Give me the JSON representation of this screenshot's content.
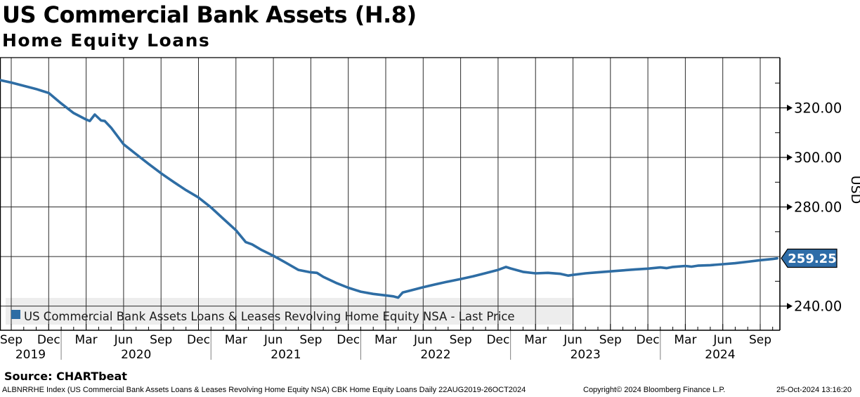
{
  "header": {
    "title": "US Commercial Bank Assets (H.8)",
    "subtitle": "Home Equity Loans"
  },
  "source_line": "Source: CHARTbeat",
  "footer": {
    "left": "ALBNRRHE Index (US Commercial Bank Assets Loans & Leases Revolving Home Equity NSA) CBK Home Equity Loans  Daily 22AUG2019-26OCT2024",
    "center": "Copyright© 2024 Bloomberg Finance L.P.",
    "right": "25-Oct-2024 13:16:20"
  },
  "legend": {
    "label": "US Commercial Bank Assets Loans & Leases Revolving Home Equity NSA - Last Price"
  },
  "last_price": {
    "value": "259.25"
  },
  "colors": {
    "line": "#2e6da4",
    "badge": "#2e6da8",
    "badge_text": "#ffffff",
    "grid": "#2b2b2b",
    "frame": "#000000",
    "legend_band": "#ededed",
    "legend_text": "#1c1c1c",
    "year_separator": "#808080"
  },
  "axes": {
    "y": {
      "title": "USD",
      "major_values": [
        320,
        300,
        280,
        240
      ],
      "major_labels": [
        "320.00",
        "300.00",
        "280.00",
        "240.00"
      ],
      "minor_values": [
        330,
        310,
        290,
        270,
        250
      ],
      "grid_values": [
        240,
        260,
        280,
        300,
        320
      ],
      "range_top": 340.2,
      "range_bottom": 230.2
    },
    "x": {
      "quarter_labels": [
        "Sep",
        "Dec",
        "Mar",
        "Jun",
        "Sep",
        "Dec",
        "Mar",
        "Jun",
        "Sep",
        "Dec",
        "Mar",
        "Jun",
        "Sep",
        "Dec",
        "Mar",
        "Jun",
        "Sep",
        "Dec",
        "Mar",
        "Jun",
        "Sep"
      ],
      "year_labels": [
        "2019",
        "2020",
        "2021",
        "2022",
        "2023",
        "2024"
      ],
      "range": "22AUG2019 - 26OCT2024"
    }
  },
  "chart_data": {
    "type": "line",
    "title": "US Commercial Bank Assets (H.8) - Home Equity Loans",
    "ylabel": "USD",
    "ylim": [
      230.2,
      340.2
    ],
    "grid": true,
    "legend_position": "bottom-left inside plot",
    "last_price": 259.25,
    "series": [
      {
        "name": "US Commercial Bank Assets Loans & Leases Revolving Home Equity NSA - Last Price",
        "color": "#2e6da4",
        "points": [
          [
            "2019-08-22",
            331.2
          ],
          [
            "2019-09-01",
            330.2
          ],
          [
            "2019-10-01",
            328.9
          ],
          [
            "2019-11-01",
            327.6
          ],
          [
            "2019-11-16",
            326.8
          ],
          [
            "2019-12-01",
            326.0
          ],
          [
            "2020-01-01",
            321.8
          ],
          [
            "2020-02-01",
            317.9
          ],
          [
            "2020-03-01",
            315.3
          ],
          [
            "2020-03-10",
            314.7
          ],
          [
            "2020-03-22",
            317.3
          ],
          [
            "2020-04-07",
            314.9
          ],
          [
            "2020-04-16",
            314.7
          ],
          [
            "2020-05-01",
            312.0
          ],
          [
            "2020-06-01",
            305.3
          ],
          [
            "2020-07-01",
            301.3
          ],
          [
            "2020-08-01",
            297.4
          ],
          [
            "2020-09-01",
            293.6
          ],
          [
            "2020-10-01",
            290.1
          ],
          [
            "2020-11-01",
            286.8
          ],
          [
            "2020-12-01",
            283.8
          ],
          [
            "2021-01-01",
            279.8
          ],
          [
            "2021-02-01",
            275.2
          ],
          [
            "2021-03-01",
            270.6
          ],
          [
            "2021-03-25",
            265.8
          ],
          [
            "2021-04-10",
            264.9
          ],
          [
            "2021-05-01",
            262.8
          ],
          [
            "2021-06-01",
            260.3
          ],
          [
            "2021-07-01",
            257.5
          ],
          [
            "2021-08-01",
            254.6
          ],
          [
            "2021-09-01",
            253.6
          ],
          [
            "2021-09-16",
            253.4
          ],
          [
            "2021-10-01",
            251.8
          ],
          [
            "2021-11-01",
            249.4
          ],
          [
            "2021-12-01",
            247.4
          ],
          [
            "2022-01-01",
            245.8
          ],
          [
            "2022-02-01",
            244.9
          ],
          [
            "2022-03-01",
            244.3
          ],
          [
            "2022-03-20",
            243.9
          ],
          [
            "2022-04-01",
            243.4
          ],
          [
            "2022-04-12",
            245.5
          ],
          [
            "2022-05-01",
            246.3
          ],
          [
            "2022-06-01",
            247.6
          ],
          [
            "2022-07-01",
            248.8
          ],
          [
            "2022-08-01",
            249.9
          ],
          [
            "2022-09-01",
            250.9
          ],
          [
            "2022-10-01",
            252.0
          ],
          [
            "2022-11-01",
            253.3
          ],
          [
            "2022-12-01",
            254.6
          ],
          [
            "2022-12-20",
            255.8
          ],
          [
            "2023-01-01",
            255.2
          ],
          [
            "2023-02-01",
            253.8
          ],
          [
            "2023-03-01",
            253.2
          ],
          [
            "2023-04-01",
            253.4
          ],
          [
            "2023-05-01",
            253.0
          ],
          [
            "2023-05-20",
            252.3
          ],
          [
            "2023-06-01",
            252.6
          ],
          [
            "2023-07-01",
            253.2
          ],
          [
            "2023-08-01",
            253.6
          ],
          [
            "2023-09-01",
            254.0
          ],
          [
            "2023-10-01",
            254.4
          ],
          [
            "2023-11-01",
            254.8
          ],
          [
            "2023-12-01",
            255.1
          ],
          [
            "2024-01-01",
            255.6
          ],
          [
            "2024-01-16",
            255.3
          ],
          [
            "2024-02-01",
            255.8
          ],
          [
            "2024-03-01",
            256.2
          ],
          [
            "2024-03-16",
            255.9
          ],
          [
            "2024-04-01",
            256.3
          ],
          [
            "2024-05-01",
            256.5
          ],
          [
            "2024-06-01",
            256.9
          ],
          [
            "2024-07-01",
            257.3
          ],
          [
            "2024-08-01",
            257.9
          ],
          [
            "2024-09-01",
            258.5
          ],
          [
            "2024-10-01",
            259.0
          ],
          [
            "2024-10-26",
            259.25
          ]
        ]
      }
    ]
  }
}
